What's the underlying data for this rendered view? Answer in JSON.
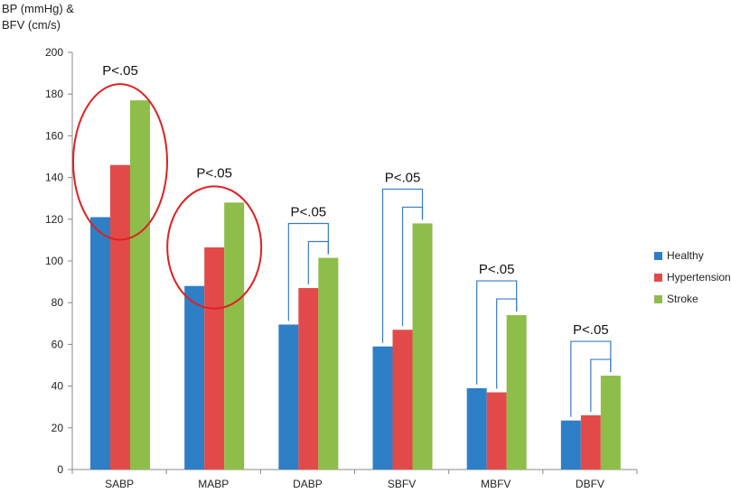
{
  "chart_data": {
    "type": "bar",
    "ylabel": [
      "BP (mmHg) &",
      "BFV (cm/s)"
    ],
    "xlabel": "",
    "ylim": [
      0,
      200
    ],
    "yticks": [
      0,
      20,
      40,
      60,
      80,
      100,
      120,
      140,
      160,
      180,
      200
    ],
    "categories": [
      "SABP",
      "MABP",
      "DABP",
      "SBFV",
      "MBFV",
      "DBFV"
    ],
    "series": [
      {
        "name": "Healthy",
        "color": "#2e7fc6",
        "values": [
          121,
          88,
          69.5,
          59,
          39,
          23.5
        ]
      },
      {
        "name": "Hypertension",
        "color": "#e24a4a",
        "values": [
          146,
          106.5,
          87,
          67,
          37,
          26
        ]
      },
      {
        "name": "Stroke",
        "color": "#8ebd4a",
        "values": [
          177,
          128,
          101.5,
          118,
          74,
          45
        ]
      }
    ],
    "legend_position": "right",
    "grid": false,
    "annotations": [
      {
        "text": "P<.05",
        "category": "SABP",
        "marker": "circle"
      },
      {
        "text": "P<.05",
        "category": "MABP",
        "marker": "circle"
      },
      {
        "text": "P<.05",
        "category": "DABP",
        "marker": "bracket"
      },
      {
        "text": "P<.05",
        "category": "SBFV",
        "marker": "bracket"
      },
      {
        "text": "P<.05",
        "category": "MBFV",
        "marker": "bracket"
      },
      {
        "text": "P<.05",
        "category": "DBFV",
        "marker": "bracket"
      }
    ],
    "colors": {
      "circle": "#e02020",
      "bracket": "#3a7cc4"
    }
  }
}
